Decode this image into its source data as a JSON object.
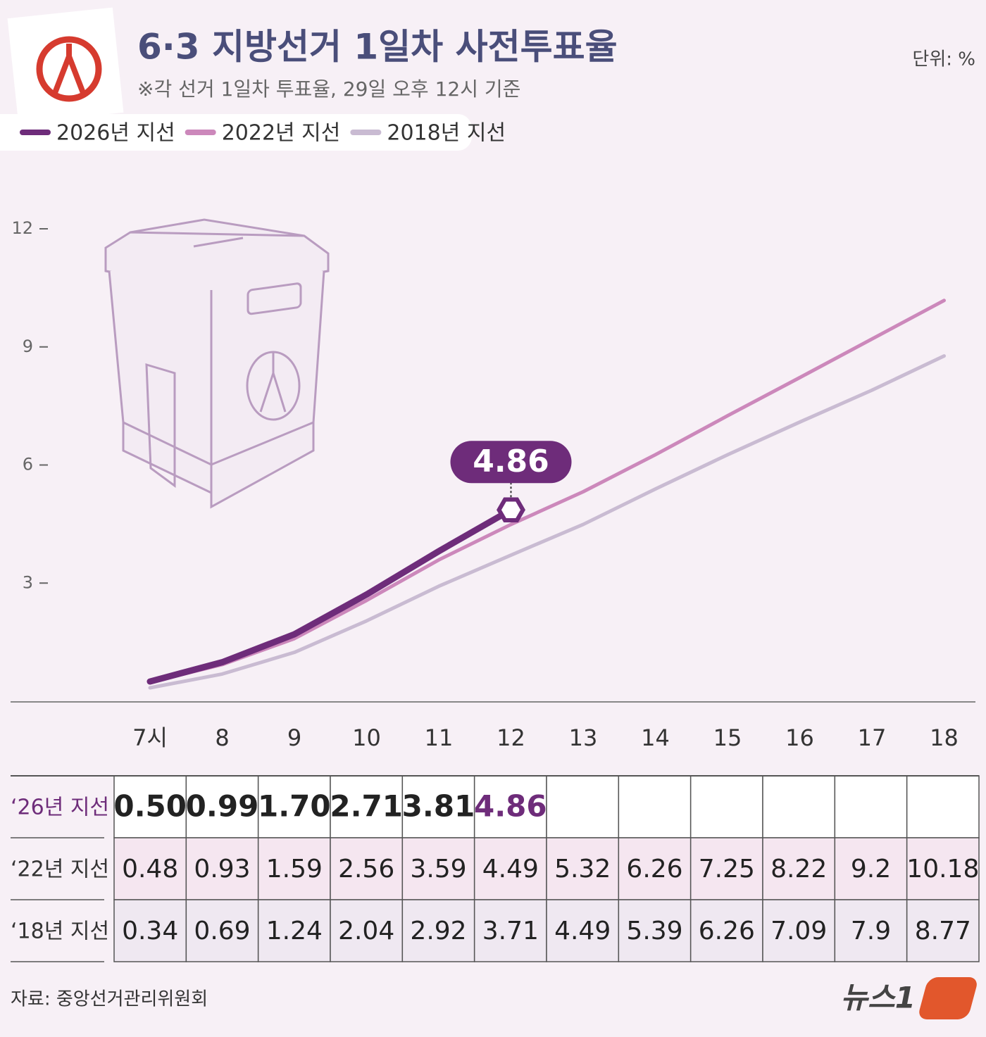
{
  "chart_data": {
    "type": "line",
    "title": "6·3 지방선거 1일차 사전투표율",
    "subtitle": "※각 선거 1일차 투표율, 29일 오후 12시 기준",
    "unit": "단위: %",
    "source": "자료: 중앙선거관리위원회",
    "logo": "뉴스1",
    "categories": [
      "7시",
      "8",
      "9",
      "10",
      "11",
      "12",
      "13",
      "14",
      "15",
      "16",
      "17",
      "18"
    ],
    "table_labels": [
      "‘26년 지선",
      "‘22년 지선",
      "‘18년 지선"
    ],
    "series": [
      {
        "name": "2026년 지선",
        "color": "#6e2c7a",
        "values": [
          0.5,
          0.99,
          1.7,
          2.71,
          3.81,
          4.86,
          null,
          null,
          null,
          null,
          null,
          null
        ],
        "value_labels": [
          "0.50",
          "0.99",
          "1.70",
          "2.71",
          "3.81",
          "4.86",
          null,
          null,
          null,
          null,
          null,
          null
        ]
      },
      {
        "name": "2022년 지선",
        "color": "#cc88bb",
        "values": [
          0.48,
          0.93,
          1.59,
          2.56,
          3.59,
          4.49,
          5.32,
          6.26,
          7.25,
          8.22,
          9.2,
          10.18
        ],
        "value_labels": [
          "0.48",
          "0.93",
          "1.59",
          "2.56",
          "3.59",
          "4.49",
          "5.32",
          "6.26",
          "7.25",
          "8.22",
          "9.2",
          "10.18"
        ]
      },
      {
        "name": "2018년 지선",
        "color": "#c9bbd2",
        "values": [
          0.34,
          0.69,
          1.24,
          2.04,
          2.92,
          3.71,
          4.49,
          5.39,
          6.26,
          7.09,
          7.9,
          8.77
        ],
        "value_labels": [
          "0.34",
          "0.69",
          "1.24",
          "2.04",
          "2.92",
          "3.71",
          "4.49",
          "5.39",
          "6.26",
          "7.09",
          "7.9",
          "8.77"
        ]
      }
    ],
    "ylim": [
      0,
      12
    ],
    "yticks": [
      3,
      6,
      9,
      12
    ]
  }
}
